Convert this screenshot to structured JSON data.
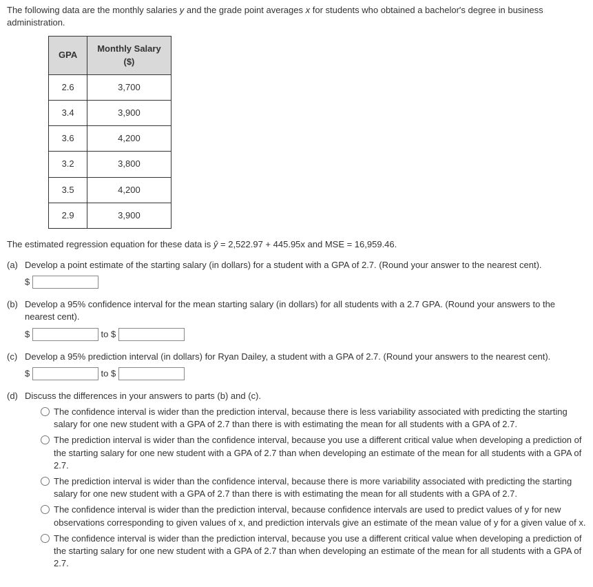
{
  "intro": {
    "line": "The following data are the monthly salaries y and the grade point averages x for students who obtained a bachelor's degree in business administration."
  },
  "table": {
    "headers": {
      "gpa": "GPA",
      "salary_l1": "Monthly Salary",
      "salary_l2": "($)"
    },
    "rows": [
      {
        "gpa": "2.6",
        "salary": "3,700"
      },
      {
        "gpa": "3.4",
        "salary": "3,900"
      },
      {
        "gpa": "3.6",
        "salary": "4,200"
      },
      {
        "gpa": "3.2",
        "salary": "3,800"
      },
      {
        "gpa": "3.5",
        "salary": "4,200"
      },
      {
        "gpa": "2.9",
        "salary": "3,900"
      }
    ]
  },
  "equation": {
    "prefix": "The estimated regression equation for these data is ",
    "yhat": "ŷ",
    "after_yhat": " = 2,522.97 + 445.95x and MSE = 16,959.46."
  },
  "parts": {
    "a": {
      "label": "(a)",
      "text": "Develop a point estimate of the starting salary (in dollars) for a student with a GPA of 2.7. (Round your answer to the nearest cent).",
      "dollar": "$"
    },
    "b": {
      "label": "(b)",
      "text": "Develop a 95% confidence interval for the mean starting salary (in dollars) for all students with a 2.7 GPA. (Round your answers to the nearest cent).",
      "dollar1": "$",
      "to": " to $"
    },
    "c": {
      "label": "(c)",
      "text": "Develop a 95% prediction interval (in dollars) for Ryan Dailey, a student with a GPA of 2.7. (Round your answers to the nearest cent).",
      "dollar1": "$",
      "to": " to $"
    },
    "d": {
      "label": "(d)",
      "text": "Discuss the differences in your answers to parts (b) and (c).",
      "options": [
        "The confidence interval is wider than the prediction interval, because there is less variability associated with predicting the starting salary for one new student with a GPA of 2.7 than there is with estimating the mean for all students with a GPA of 2.7.",
        "The prediction interval is wider than the confidence interval, because you use a different critical value when developing a prediction of the starting salary for one new student with a GPA of 2.7 than when developing an estimate of the mean for all students with a GPA of 2.7.",
        "The prediction interval is wider than the confidence interval, because there is more variability associated with predicting the starting salary for one new student with a GPA of 2.7 than there is with estimating the mean for all students with a GPA of 2.7.",
        "The confidence interval is wider than the prediction interval, because confidence intervals are used to predict values of y for new observations corresponding to given values of x, and prediction intervals give an estimate of the mean value of y for a given value of x.",
        "The confidence interval is wider than the prediction interval, because you use a different critical value when developing a prediction of the starting salary for one new student with a GPA of 2.7 than when developing an estimate of the mean for all students with a GPA of 2.7."
      ]
    }
  }
}
